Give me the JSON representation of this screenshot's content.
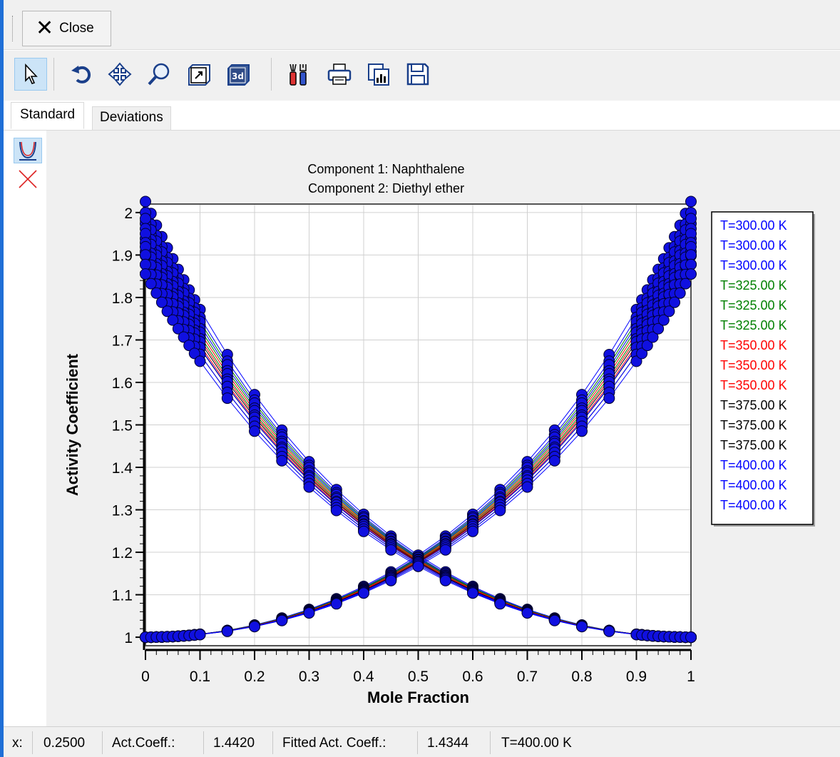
{
  "toolbar": {
    "close_label": "Close"
  },
  "tools": [
    {
      "name": "select-pointer-icon",
      "active": true
    },
    {
      "name": "rotate-icon"
    },
    {
      "name": "move-icon"
    },
    {
      "name": "zoom-icon"
    },
    {
      "name": "zoom-box-icon"
    },
    {
      "name": "3d-view-icon"
    },
    {
      "name": "settings-tools-icon"
    },
    {
      "name": "print-icon"
    },
    {
      "name": "copy-chart-icon"
    },
    {
      "name": "save-icon"
    }
  ],
  "tabs": [
    {
      "label": "Standard",
      "active": true
    },
    {
      "label": "Deviations",
      "active": false
    }
  ],
  "status": {
    "x_label": "x:",
    "x_value": "0.2500",
    "act_label": "Act.Coeff.:",
    "act_value": "1.4420",
    "fitted_label": "Fitted Act. Coeff.:",
    "fitted_value": "1.4344",
    "temp_value": "T=400.00 K"
  },
  "chart_data": {
    "type": "line",
    "title": "Component 1: Naphthalene",
    "subtitle": "Component 2: Diethyl ether",
    "xlabel": "Mole Fraction",
    "ylabel": "Activity Coefficient",
    "xlim": [
      0,
      1
    ],
    "ylim": [
      0.98,
      2.02
    ],
    "xticks": [
      0,
      0.1,
      0.2,
      0.3,
      0.4,
      0.5,
      0.6,
      0.7,
      0.8,
      0.9,
      1
    ],
    "xtick_labels": [
      "0",
      "0.1",
      "0.2",
      "0.3",
      "0.4",
      "0.5",
      "0.6",
      "0.7",
      "0.8",
      "0.9",
      "1"
    ],
    "yticks": [
      1,
      1.1,
      1.2,
      1.3,
      1.4,
      1.5,
      1.6,
      1.7,
      1.8,
      1.9,
      2
    ],
    "ytick_labels": [
      "1",
      "1.1",
      "1.2",
      "1.3",
      "1.4",
      "1.5",
      "1.6",
      "1.7",
      "1.8",
      "1.9",
      "2"
    ],
    "grid": true,
    "legend_position": "right",
    "x": [
      0,
      0.01,
      0.02,
      0.03,
      0.04,
      0.05,
      0.06,
      0.07,
      0.08,
      0.09,
      0.1,
      0.15,
      0.2,
      0.25,
      0.3,
      0.35,
      0.4,
      0.45,
      0.5,
      0.55,
      0.6,
      0.65,
      0.7,
      0.75,
      0.8,
      0.85,
      0.9,
      0.91,
      0.92,
      0.93,
      0.94,
      0.95,
      0.96,
      0.97,
      0.98,
      0.99,
      1
    ],
    "series": [
      {
        "name": "T=300.00 K",
        "color": "#0000ff",
        "A": 0.706
      },
      {
        "name": "T=300.00 K",
        "color": "#0000ff",
        "A": 0.693
      },
      {
        "name": "T=300.00 K",
        "color": "#0000ff",
        "A": 0.68
      },
      {
        "name": "T=325.00 K",
        "color": "#008000",
        "A": 0.686
      },
      {
        "name": "T=325.00 K",
        "color": "#008000",
        "A": 0.674
      },
      {
        "name": "T=325.00 K",
        "color": "#008000",
        "A": 0.662
      },
      {
        "name": "T=350.00 K",
        "color": "#ff0000",
        "A": 0.668
      },
      {
        "name": "T=350.00 K",
        "color": "#ff0000",
        "A": 0.657
      },
      {
        "name": "T=350.00 K",
        "color": "#ff0000",
        "A": 0.646
      },
      {
        "name": "T=375.00 K",
        "color": "#000000",
        "A": 0.652
      },
      {
        "name": "T=375.00 K",
        "color": "#000000",
        "A": 0.641
      },
      {
        "name": "T=375.00 K",
        "color": "#000000",
        "A": 0.63
      },
      {
        "name": "T=400.00 K",
        "color": "#0000ff",
        "A": 0.642
      },
      {
        "name": "T=400.00 K",
        "color": "#0000ff",
        "A": 0.63
      },
      {
        "name": "T=400.00 K",
        "color": "#0000ff",
        "A": 0.618
      }
    ]
  }
}
